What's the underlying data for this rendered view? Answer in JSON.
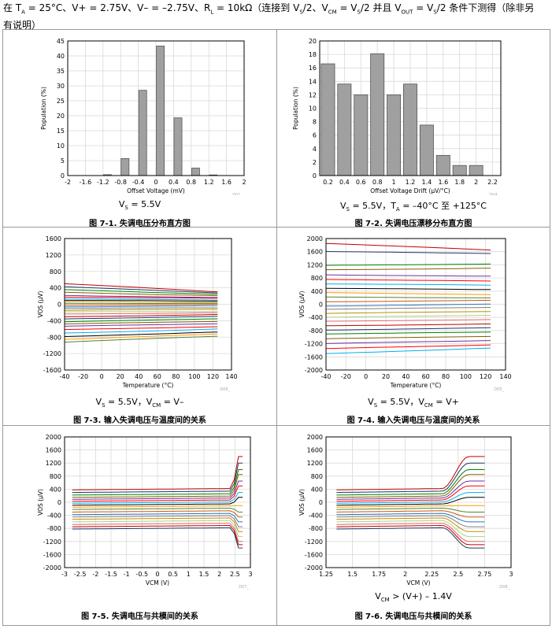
{
  "header": {
    "prefix": "在 T",
    "ta_sub": "A",
    "line1": " = 25°C、V+ = 2.75V、V– = –2.75V、R",
    "rl_sub": "L",
    "line1b": " = 10kΩ（连接到 V",
    "vs_sub": "S",
    "line1c": "/2、V",
    "vcm_sub": "CM",
    "line1d": " = V",
    "vs_sub2": "S",
    "line1e": "/2 并且 V",
    "vout_sub": "OUT",
    "line1f": " = V",
    "vs_sub3": "S",
    "line1g": "/2 条件下测得（除非另",
    "line2": "有说明）"
  },
  "figures": [
    {
      "cond_main": "V",
      "cond_sub": "S",
      "cond_rest": " = 5.5V",
      "caption": "图 7-1. 失调电压分布直方图",
      "code": "D01_"
    },
    {
      "cond_main": "V",
      "cond_sub": "S",
      "cond_rest": " = 5.5V，T",
      "cond_sub2": "A",
      "cond_rest2": " = –40°C 至 +125°C",
      "caption": "图 7-2. 失调电压漂移分布直方图",
      "code": "D04_"
    },
    {
      "cond_main": "V",
      "cond_sub": "S",
      "cond_rest": " = 5.5V，V",
      "cond_sub2": "CM",
      "cond_rest2": " = V–",
      "caption": "图 7-3. 输入失调电压与温度间的关系",
      "code": "D06_"
    },
    {
      "cond_main": "V",
      "cond_sub": "S",
      "cond_rest": " = 5.5V，V",
      "cond_sub2": "CM",
      "cond_rest2": " = V+",
      "caption": "图 7-4. 输入失调电压与温度间的关系",
      "code": "D05_"
    },
    {
      "caption": "图 7-5. 失调电压与共模间的关系",
      "code": "D07_"
    },
    {
      "cond_main": "V",
      "cond_sub": "CM",
      "cond_rest": " > (V+) – 1.4V",
      "caption": "图 7-6. 失调电压与共模间的关系",
      "code": "D08_"
    }
  ],
  "chart_data": [
    {
      "type": "bar",
      "xlabel": "Offset Voltage (mV)",
      "ylabel": "Population (%)",
      "xlim": [
        -2,
        2
      ],
      "ylim": [
        0,
        45
      ],
      "xticks": [
        "-2",
        "-1.6",
        "-1.2",
        "-0.8",
        "-0.4",
        "0",
        "0.4",
        "0.8",
        "1.2",
        "1.6",
        "2"
      ],
      "yticks": [
        "0",
        "5",
        "10",
        "15",
        "20",
        "25",
        "30",
        "35",
        "40",
        "45"
      ],
      "bin_width": 0.2,
      "bin_centers": [
        -1.7,
        -1.5,
        -1.3,
        -1.1,
        -0.9,
        -0.7,
        -0.5,
        -0.3,
        -0.1,
        0.1,
        0.3,
        0.5,
        0.7,
        0.9,
        1.1,
        1.3,
        1.5,
        1.7
      ],
      "values": [
        0,
        0,
        0,
        0.3,
        0,
        5.7,
        0,
        28.5,
        0,
        43.3,
        0,
        19.3,
        0,
        2.5,
        0,
        0.2,
        0,
        0
      ]
    },
    {
      "type": "bar",
      "xlabel": "Offset Voltage Drift (µV/°C)",
      "ylabel": "Population (%)",
      "xlim": [
        0.1,
        2.3
      ],
      "ylim": [
        0,
        20
      ],
      "xticks": [
        "0.2",
        "0.4",
        "0.6",
        "0.8",
        "1",
        "1.2",
        "1.4",
        "1.6",
        "1.8",
        "2",
        "2.2"
      ],
      "yticks": [
        "0",
        "2",
        "4",
        "6",
        "8",
        "10",
        "12",
        "14",
        "16",
        "18",
        "20"
      ],
      "bin_width": 0.2,
      "bin_centers": [
        0.2,
        0.4,
        0.6,
        0.8,
        1.0,
        1.2,
        1.4,
        1.6,
        1.8,
        2.0
      ],
      "values": [
        16.6,
        13.6,
        12.0,
        18.1,
        12.0,
        13.6,
        7.5,
        3.0,
        1.5,
        1.5
      ]
    },
    {
      "type": "line",
      "xlabel": "Temperature (°C)",
      "ylabel": "VOS (µV)",
      "xlim": [
        -40,
        140
      ],
      "ylim": [
        -1600,
        1600
      ],
      "xticks": [
        "-40",
        "-20",
        "0",
        "20",
        "40",
        "60",
        "80",
        "100",
        "120",
        "140"
      ],
      "yticks": [
        "-1600",
        "-1200",
        "-800",
        "-400",
        "0",
        "400",
        "800",
        "1200",
        "1600"
      ],
      "x": [
        -40,
        125
      ],
      "series_start": [
        500,
        420,
        350,
        290,
        220,
        180,
        130,
        90,
        60,
        20,
        -20,
        -60,
        -100,
        -150,
        -190,
        -240,
        -300,
        -350,
        -420,
        -480,
        -540,
        -620,
        -700,
        -780,
        -850,
        -920
      ],
      "series_end": [
        300,
        280,
        250,
        210,
        160,
        140,
        100,
        80,
        50,
        30,
        0,
        -40,
        -90,
        -120,
        -170,
        -200,
        -250,
        -300,
        -360,
        -420,
        -470,
        -540,
        -600,
        -680,
        -730,
        -780
      ]
    },
    {
      "type": "line",
      "xlabel": "Temperature (°C)",
      "ylabel": "VOS (µV)",
      "xlim": [
        -40,
        140
      ],
      "ylim": [
        -2000,
        2000
      ],
      "xticks": [
        "-40",
        "-20",
        "0",
        "20",
        "40",
        "60",
        "80",
        "100",
        "120",
        "140"
      ],
      "yticks": [
        "-2000",
        "-1600",
        "-1200",
        "-800",
        "-400",
        "0",
        "400",
        "800",
        "1200",
        "1600",
        "2000"
      ],
      "x": [
        -40,
        125
      ],
      "series_start": [
        1850,
        1600,
        1180,
        1050,
        900,
        760,
        620,
        480,
        350,
        220,
        80,
        -50,
        -150,
        -280,
        -400,
        -520,
        -650,
        -780,
        -900,
        -1050,
        -1200,
        -1350,
        -1500
      ],
      "series_end": [
        1650,
        1550,
        1230,
        1100,
        850,
        700,
        580,
        450,
        300,
        200,
        120,
        0,
        -100,
        -220,
        -330,
        -460,
        -600,
        -720,
        -850,
        -980,
        -1100,
        -1230,
        -1330
      ]
    },
    {
      "type": "line",
      "xlabel": "VCM (V)",
      "ylabel": "VOS (µV)",
      "xlim": [
        -3,
        3
      ],
      "ylim": [
        -2000,
        2000
      ],
      "xticks": [
        "-3",
        "-2.5",
        "-2",
        "-1.5",
        "-1",
        "-0.5",
        "0",
        "0.5",
        "1",
        "1.5",
        "2",
        "2.5",
        "3"
      ],
      "yticks": [
        "-2000",
        "-1600",
        "-1200",
        "-800",
        "-400",
        "0",
        "400",
        "800",
        "1200",
        "1600",
        "2000"
      ],
      "x_range": [
        -2.75,
        2.75
      ],
      "knee": 2.4,
      "series_flat": [
        380,
        300,
        220,
        150,
        90,
        30,
        -30,
        -90,
        -150,
        -220,
        -300,
        -380,
        -450,
        -520,
        -600,
        -680,
        -750,
        -820
      ],
      "series_end": [
        1400,
        1200,
        1000,
        850,
        650,
        500,
        300,
        150,
        -100,
        -300,
        -450,
        -600,
        -750,
        -900,
        -1050,
        -1200,
        -1300,
        -1400
      ]
    },
    {
      "type": "line",
      "xlabel": "VCM (V)",
      "ylabel": "VOS (µV)",
      "xlim": [
        1.25,
        3
      ],
      "ylim": [
        -2000,
        2000
      ],
      "xticks": [
        "1.25",
        "1.5",
        "1.75",
        "2",
        "2.25",
        "2.5",
        "2.75",
        "3"
      ],
      "yticks": [
        "-2000",
        "-1600",
        "-1200",
        "-800",
        "-400",
        "0",
        "400",
        "800",
        "1200",
        "1600",
        "2000"
      ],
      "x_range": [
        1.35,
        2.75
      ],
      "knee": 2.35,
      "series_flat": [
        380,
        300,
        220,
        150,
        90,
        30,
        -30,
        -90,
        -150,
        -220,
        -300,
        -380,
        -450,
        -520,
        -600,
        -680,
        -750,
        -820
      ],
      "series_end": [
        1400,
        1200,
        1000,
        850,
        650,
        500,
        300,
        150,
        -100,
        -300,
        -450,
        -600,
        -750,
        -900,
        -1050,
        -1200,
        -1300,
        -1400
      ]
    }
  ],
  "colors": {
    "bar_fill": "#a0a0a0",
    "bar_stroke": "#555555",
    "grid": "#d9d9d9",
    "frame": "#999999",
    "series": [
      "#c00000",
      "#1f3864",
      "#008000",
      "#7f6000",
      "#7030a0",
      "#ff0000",
      "#00b0f0",
      "#000000",
      "#ff9900",
      "#548235",
      "#c55a11",
      "#2e75b6",
      "#808080",
      "#bf8f00",
      "#a9d18e",
      "#e06666"
    ]
  }
}
